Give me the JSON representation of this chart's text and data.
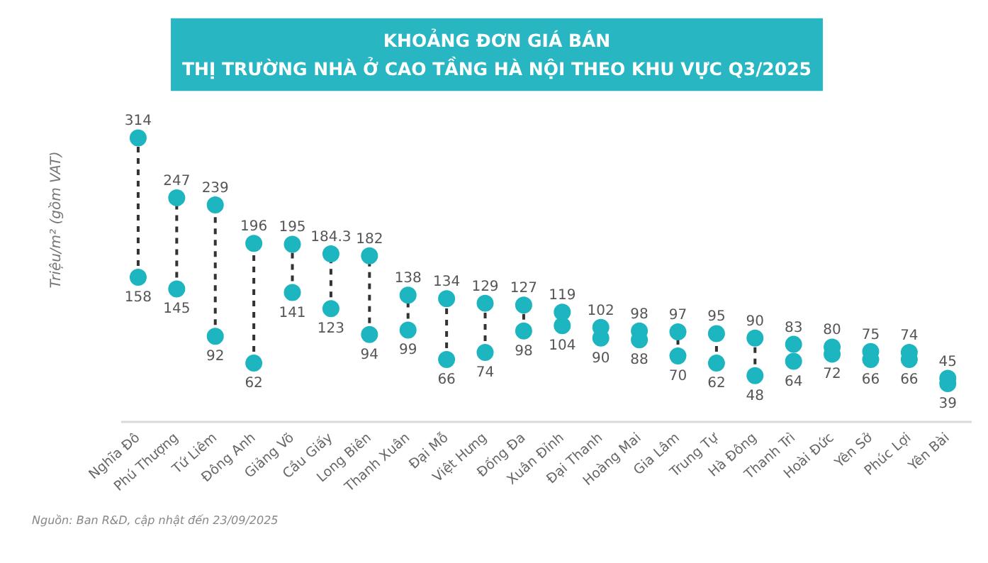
{
  "chart_data": {
    "type": "scatter",
    "title": "KHOẢNG ĐƠN GIÁ BÁN\nTHỊ TRƯỜNG NHÀ Ở CAO TẦNG HÀ NỘI THEO KHU VỰC Q3/2025",
    "ylabel": "Triệu/m² (gồm VAT)",
    "annotations": [
      "Nguồn: Ban R&D, cập nhật đến 23/09/2025"
    ],
    "categories": [
      "Nghĩa Đô",
      "Phú Thượng",
      "Tứ Liêm",
      "Đông Anh",
      "Giảng Võ",
      "Cầu Giấy",
      "Long Biên",
      "Thanh Xuân",
      "Đại Mỗ",
      "Việt Hưng",
      "Đống Đa",
      "Xuân Đỉnh",
      "Đại Thanh",
      "Hoàng Mai",
      "Gia Lâm",
      "Trung Tự",
      "Hà Đông",
      "Thanh Trì",
      "Hoài Đức",
      "Yên Sở",
      "Phúc Lợi",
      "Yên Bài"
    ],
    "series": [
      {
        "color": "#1cb5c0",
        "values": [
          314,
          247,
          239,
          196,
          195,
          184.3,
          182,
          138,
          134,
          129,
          127,
          119,
          102,
          98,
          97,
          95,
          90,
          83,
          80,
          75,
          74,
          45
        ]
      },
      {
        "color": "#1cb5c0",
        "values": [
          158,
          145,
          92,
          62,
          141,
          123,
          94,
          99,
          66,
          74,
          98,
          104,
          90,
          88,
          70,
          62,
          48,
          64,
          72,
          66,
          66,
          39
        ]
      }
    ],
    "data_labels": true,
    "marker": "circle",
    "line_style": "dashed",
    "grid": false,
    "tick_labels": "x"
  }
}
